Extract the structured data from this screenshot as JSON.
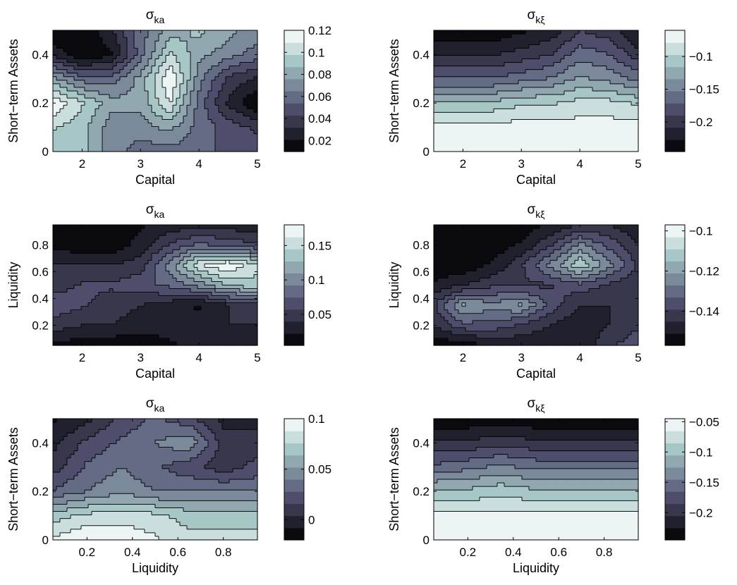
{
  "figure": {
    "panels": [
      {
        "title_symbol": "σ",
        "title_sub": "ka",
        "xlabel": "Capital",
        "ylabel": "Short−term Assets",
        "xticks": [
          "2",
          "3",
          "4",
          "5"
        ],
        "yticks": [
          "0",
          "0.2",
          "0.4"
        ],
        "colorbar_ticks": [
          "0.12",
          "0.1",
          "0.08",
          "0.06",
          "0.04",
          "0.02"
        ]
      },
      {
        "title_symbol": "σ",
        "title_sub": "kξ",
        "xlabel": "Capital",
        "ylabel": "Short−term Assets",
        "xticks": [
          "2",
          "3",
          "4",
          "5"
        ],
        "yticks": [
          "0",
          "0.2",
          "0.4"
        ],
        "colorbar_ticks": [
          "−0.1",
          "−0.15",
          "−0.2"
        ]
      },
      {
        "title_symbol": "σ",
        "title_sub": "ka",
        "xlabel": "Capital",
        "ylabel": "Liquidity",
        "xticks": [
          "2",
          "3",
          "4",
          "5"
        ],
        "yticks": [
          "0.2",
          "0.4",
          "0.6",
          "0.8"
        ],
        "colorbar_ticks": [
          "0.15",
          "0.1",
          "0.05"
        ]
      },
      {
        "title_symbol": "σ",
        "title_sub": "kξ",
        "xlabel": "Capital",
        "ylabel": "Liquidity",
        "xticks": [
          "2",
          "3",
          "4",
          "5"
        ],
        "yticks": [
          "0.2",
          "0.4",
          "0.6",
          "0.8"
        ],
        "colorbar_ticks": [
          "−0.1",
          "−0.12",
          "−0.14"
        ]
      },
      {
        "title_symbol": "σ",
        "title_sub": "ka",
        "xlabel": "Liquidity",
        "ylabel": "Short−term Assets",
        "xticks": [
          "0.2",
          "0.4",
          "0.6",
          "0.8"
        ],
        "yticks": [
          "0",
          "0.2",
          "0.4"
        ],
        "colorbar_ticks": [
          "0.1",
          "0.05",
          "0"
        ]
      },
      {
        "title_symbol": "σ",
        "title_sub": "kξ",
        "xlabel": "Liquidity",
        "ylabel": "Short−term Assets",
        "xticks": [
          "0.2",
          "0.4",
          "0.6",
          "0.8"
        ],
        "yticks": [
          "0",
          "0.2",
          "0.4"
        ],
        "colorbar_ticks": [
          "−0.05",
          "−0.1",
          "−0.15",
          "−0.2"
        ]
      }
    ]
  },
  "chart_data": [
    {
      "type": "heatmap",
      "title": "σ_ka",
      "xlabel": "Capital",
      "ylabel": "Short−term Assets",
      "xlim": [
        1.5,
        5
      ],
      "ylim": [
        0,
        0.5
      ],
      "clim": [
        0.01,
        0.12
      ],
      "colormap": "bone",
      "colorbar_ticks": [
        0.12,
        0.1,
        0.08,
        0.06,
        0.04,
        0.02
      ],
      "x": [
        1.5,
        2,
        2.5,
        3,
        3.5,
        4,
        4.5,
        5
      ],
      "y": [
        0,
        0.1,
        0.2,
        0.3,
        0.4,
        0.5
      ],
      "z": [
        [
          0.09,
          0.09,
          0.07,
          0.06,
          0.06,
          0.06,
          0.05,
          0.05
        ],
        [
          0.1,
          0.09,
          0.07,
          0.07,
          0.08,
          0.06,
          0.05,
          0.04
        ],
        [
          0.12,
          0.1,
          0.08,
          0.08,
          0.11,
          0.06,
          0.03,
          0.01
        ],
        [
          0.08,
          0.06,
          0.06,
          0.08,
          0.12,
          0.07,
          0.04,
          0.03
        ],
        [
          0.03,
          0.01,
          0.02,
          0.06,
          0.1,
          0.08,
          0.07,
          0.06
        ],
        [
          0.01,
          0.01,
          0.03,
          0.06,
          0.08,
          0.09,
          0.08,
          0.07
        ]
      ]
    },
    {
      "type": "heatmap",
      "title": "σ_kξ",
      "xlabel": "Capital",
      "ylabel": "Short−term Assets",
      "xlim": [
        1.5,
        5
      ],
      "ylim": [
        0,
        0.5
      ],
      "clim": [
        -0.245,
        -0.06
      ],
      "colormap": "bone",
      "colorbar_ticks": [
        -0.1,
        -0.15,
        -0.2
      ],
      "x": [
        1.5,
        2,
        2.5,
        3,
        3.5,
        4,
        4.5,
        5
      ],
      "y": [
        0,
        0.1,
        0.2,
        0.3,
        0.4,
        0.5
      ],
      "z": [
        [
          -0.06,
          -0.06,
          -0.06,
          -0.06,
          -0.06,
          -0.06,
          -0.06,
          -0.06
        ],
        [
          -0.07,
          -0.07,
          -0.07,
          -0.07,
          -0.07,
          -0.07,
          -0.07,
          -0.07
        ],
        [
          -0.11,
          -0.11,
          -0.11,
          -0.1,
          -0.1,
          -0.09,
          -0.09,
          -0.1
        ],
        [
          -0.17,
          -0.17,
          -0.17,
          -0.16,
          -0.15,
          -0.13,
          -0.14,
          -0.16
        ],
        [
          -0.21,
          -0.21,
          -0.21,
          -0.2,
          -0.19,
          -0.16,
          -0.17,
          -0.2
        ],
        [
          -0.24,
          -0.24,
          -0.24,
          -0.23,
          -0.22,
          -0.19,
          -0.2,
          -0.23
        ]
      ]
    },
    {
      "type": "heatmap",
      "title": "σ_ka",
      "xlabel": "Capital",
      "ylabel": "Liquidity",
      "xlim": [
        1.5,
        5
      ],
      "ylim": [
        0.05,
        0.95
      ],
      "clim": [
        0.005,
        0.18
      ],
      "colormap": "bone",
      "colorbar_ticks": [
        0.15,
        0.1,
        0.05
      ],
      "x": [
        1.5,
        2,
        2.5,
        3,
        3.5,
        4,
        4.5,
        5
      ],
      "y": [
        0.05,
        0.2,
        0.35,
        0.5,
        0.65,
        0.8,
        0.95
      ],
      "z": [
        [
          0.02,
          0.01,
          0.01,
          0.01,
          0.02,
          0.03,
          0.03,
          0.03
        ],
        [
          0.05,
          0.04,
          0.04,
          0.03,
          0.03,
          0.03,
          0.04,
          0.04
        ],
        [
          0.07,
          0.06,
          0.05,
          0.04,
          0.03,
          0.02,
          0.04,
          0.05
        ],
        [
          0.05,
          0.06,
          0.06,
          0.07,
          0.08,
          0.1,
          0.13,
          0.14
        ],
        [
          0.04,
          0.04,
          0.04,
          0.05,
          0.1,
          0.16,
          0.18,
          0.15
        ],
        [
          0.02,
          0.01,
          0.01,
          0.03,
          0.06,
          0.08,
          0.07,
          0.06
        ],
        [
          0.02,
          0.01,
          0.01,
          0.02,
          0.03,
          0.03,
          0.03,
          0.03
        ]
      ]
    },
    {
      "type": "heatmap",
      "title": "σ_kξ",
      "xlabel": "Capital",
      "ylabel": "Liquidity",
      "xlim": [
        1.5,
        5
      ],
      "ylim": [
        0.05,
        0.95
      ],
      "clim": [
        -0.157,
        -0.097
      ],
      "colormap": "bone",
      "colorbar_ticks": [
        -0.1,
        -0.12,
        -0.14
      ],
      "x": [
        1.5,
        2,
        2.5,
        3,
        3.5,
        4,
        4.5,
        5
      ],
      "y": [
        0.05,
        0.2,
        0.35,
        0.5,
        0.65,
        0.8,
        0.95
      ],
      "z": [
        [
          -0.155,
          -0.155,
          -0.15,
          -0.15,
          -0.15,
          -0.15,
          -0.14,
          -0.135
        ],
        [
          -0.145,
          -0.135,
          -0.135,
          -0.14,
          -0.145,
          -0.15,
          -0.145,
          -0.14
        ],
        [
          -0.14,
          -0.12,
          -0.125,
          -0.12,
          -0.135,
          -0.145,
          -0.145,
          -0.145
        ],
        [
          -0.15,
          -0.145,
          -0.14,
          -0.14,
          -0.14,
          -0.135,
          -0.14,
          -0.145
        ],
        [
          -0.155,
          -0.155,
          -0.15,
          -0.14,
          -0.125,
          -0.11,
          -0.125,
          -0.14
        ],
        [
          -0.155,
          -0.155,
          -0.155,
          -0.15,
          -0.14,
          -0.125,
          -0.135,
          -0.145
        ],
        [
          -0.155,
          -0.155,
          -0.155,
          -0.155,
          -0.15,
          -0.145,
          -0.145,
          -0.15
        ]
      ]
    },
    {
      "type": "heatmap",
      "title": "σ_ka",
      "xlabel": "Liquidity",
      "ylabel": "Short−term Assets",
      "xlim": [
        0.05,
        0.95
      ],
      "ylim": [
        0,
        0.5
      ],
      "clim": [
        -0.02,
        0.1
      ],
      "colormap": "bone",
      "colorbar_ticks": [
        0.1,
        0.05,
        0
      ],
      "x": [
        0.05,
        0.2,
        0.35,
        0.5,
        0.65,
        0.8,
        0.95
      ],
      "y": [
        0,
        0.1,
        0.2,
        0.3,
        0.4,
        0.5
      ],
      "z": [
        [
          0.09,
          0.1,
          0.1,
          0.09,
          0.08,
          0.08,
          0.08
        ],
        [
          0.07,
          0.08,
          0.08,
          0.08,
          0.07,
          0.07,
          0.07
        ],
        [
          0.03,
          0.04,
          0.05,
          0.04,
          0.04,
          0.04,
          0.04
        ],
        [
          0.01,
          0.03,
          0.04,
          0.03,
          0.02,
          0.01,
          0.02
        ],
        [
          0.0,
          0.02,
          0.03,
          0.04,
          0.05,
          0.01,
          0.01
        ],
        [
          -0.01,
          0.0,
          0.02,
          0.03,
          0.02,
          0.0,
          0.0
        ]
      ]
    },
    {
      "type": "heatmap",
      "title": "σ_kξ",
      "xlabel": "Liquidity",
      "ylabel": "Short−term Assets",
      "xlim": [
        0.05,
        0.95
      ],
      "ylim": [
        0,
        0.5
      ],
      "clim": [
        -0.245,
        -0.045
      ],
      "colormap": "bone",
      "colorbar_ticks": [
        -0.05,
        -0.1,
        -0.15,
        -0.2
      ],
      "x": [
        0.05,
        0.2,
        0.35,
        0.5,
        0.65,
        0.8,
        0.95
      ],
      "y": [
        0,
        0.1,
        0.2,
        0.3,
        0.4,
        0.5
      ],
      "z": [
        [
          -0.05,
          -0.05,
          -0.05,
          -0.05,
          -0.05,
          -0.05,
          -0.05
        ],
        [
          -0.06,
          -0.06,
          -0.06,
          -0.06,
          -0.06,
          -0.06,
          -0.06
        ],
        [
          -0.1,
          -0.1,
          -0.09,
          -0.1,
          -0.1,
          -0.1,
          -0.1
        ],
        [
          -0.16,
          -0.15,
          -0.14,
          -0.15,
          -0.15,
          -0.15,
          -0.15
        ],
        [
          -0.2,
          -0.2,
          -0.19,
          -0.2,
          -0.2,
          -0.2,
          -0.2
        ],
        [
          -0.24,
          -0.24,
          -0.24,
          -0.24,
          -0.24,
          -0.24,
          -0.24
        ]
      ]
    }
  ]
}
